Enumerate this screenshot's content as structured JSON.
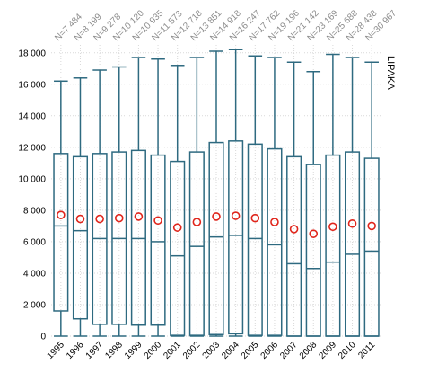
{
  "chart_data": {
    "type": "box",
    "title": "LIPAKA",
    "xlabel": "",
    "ylabel": "",
    "ylim": [
      0,
      18500
    ],
    "yticks": [
      0,
      2000,
      4000,
      6000,
      8000,
      10000,
      12000,
      14000,
      16000,
      18000
    ],
    "ytick_labels": [
      "0",
      "2 000",
      "4 000",
      "6 000",
      "8 000",
      "10 000",
      "12 000",
      "14 000",
      "16 000",
      "18 000"
    ],
    "grid": true,
    "categories": [
      "1995",
      "1996",
      "1997",
      "1998",
      "1999",
      "2000",
      "2001",
      "2002",
      "2003",
      "2004",
      "2005",
      "2006",
      "2007",
      "2008",
      "2009",
      "2010",
      "2011"
    ],
    "n_labels": [
      "N=7 484",
      "N=8 199",
      "N=9 278",
      "N=10 120",
      "N=10 935",
      "N=11 573",
      "N=12 718",
      "N=13 851",
      "N=14 918",
      "N=16 247",
      "N=17 762",
      "N=19 196",
      "N=21 142",
      "N=23 169",
      "N=25 688",
      "N=28 438",
      "N=30 967"
    ],
    "whisker_low": [
      0,
      0,
      0,
      0,
      0,
      0,
      0,
      0,
      0,
      0,
      0,
      0,
      0,
      0,
      0,
      0,
      0
    ],
    "q1": [
      1600,
      1100,
      750,
      750,
      700,
      700,
      50,
      50,
      100,
      150,
      50,
      50,
      0,
      0,
      0,
      0,
      0
    ],
    "median": [
      7000,
      6700,
      6200,
      6200,
      6200,
      6000,
      5100,
      5700,
      6300,
      6400,
      6200,
      5800,
      4600,
      4300,
      4700,
      5200,
      5400
    ],
    "q3": [
      11600,
      11400,
      11600,
      11700,
      11800,
      11500,
      11100,
      11700,
      12300,
      12400,
      12200,
      11900,
      11400,
      10900,
      11500,
      11700,
      11300
    ],
    "whisker_high": [
      16200,
      16400,
      16900,
      17100,
      17700,
      17600,
      17200,
      17700,
      18100,
      18200,
      17800,
      17700,
      17400,
      16800,
      17900,
      17700,
      17400
    ],
    "mean": [
      7700,
      7450,
      7450,
      7500,
      7600,
      7350,
      6900,
      7250,
      7600,
      7650,
      7500,
      7250,
      6800,
      6500,
      6950,
      7150,
      7000
    ],
    "colors": {
      "box": "#2e6a80",
      "mean": "#e0251b",
      "grid": "#d9d9d9",
      "n_label": "#8c8c8c"
    }
  }
}
